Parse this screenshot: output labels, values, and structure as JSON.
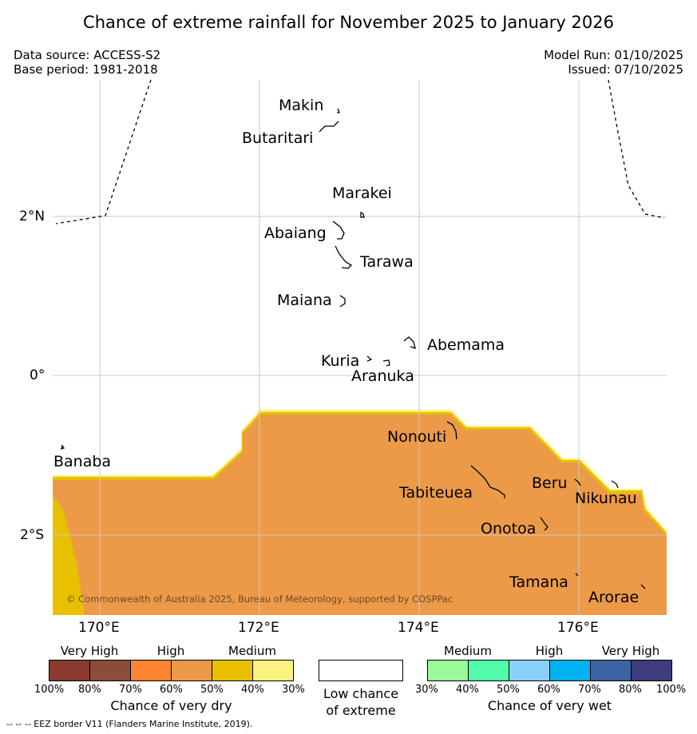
{
  "title": "Chance of extreme rainfall for November 2025 to January 2026",
  "meta": {
    "data_source": "Data source: ACCESS-S2",
    "base_period": "Base period: 1981-2018",
    "model_run": "Model Run: 01/10/2025",
    "issued": "Issued: 07/10/2025"
  },
  "axes": {
    "lat_labels": [
      "2°N",
      "0°",
      "2°S"
    ],
    "lon_labels": [
      "170°E",
      "172°E",
      "174°E",
      "176°E"
    ]
  },
  "places": {
    "makin": "Makin",
    "butaritari": "Butaritari",
    "marakei": "Marakei",
    "abaiang": "Abaiang",
    "tarawa": "Tarawa",
    "maiana": "Maiana",
    "abemama": "Abemama",
    "kuria": "Kuria",
    "aranuka": "Aranuka",
    "nonouti": "Nonouti",
    "banaba": "Banaba",
    "beru": "Beru",
    "tabiteuea": "Tabiteuea",
    "nikunau": "Nikunau",
    "onotoa": "Onotoa",
    "tamana": "Tamana",
    "arorae": "Arorae"
  },
  "copyright": "© Commonwealth of Australia 2025, Bureau of Meteorology, supported by COSPPac",
  "legend": {
    "dry": {
      "headers": [
        "Very High",
        "High",
        "Medium"
      ],
      "ticks": [
        "100%",
        "80%",
        "70%",
        "60%",
        "50%",
        "40%",
        "30%"
      ],
      "colors": [
        "#8b3a2f",
        "#8b4c3a",
        "#fd8531",
        "#ec9a48",
        "#e9c000",
        "#fbf37f"
      ],
      "title": "Chance of very dry"
    },
    "neutral": {
      "line1": "Low chance",
      "line2": "of extreme",
      "color": "#ffffff"
    },
    "wet": {
      "headers": [
        "Medium",
        "High",
        "Very High"
      ],
      "ticks": [
        "30%",
        "40%",
        "50%",
        "60%",
        "70%",
        "80%",
        "100%"
      ],
      "colors": [
        "#9afa9a",
        "#52fba8",
        "#8bd0fb",
        "#00b2ef",
        "#3c62a4",
        "#3d3c7c"
      ],
      "title": "Chance of very wet"
    }
  },
  "map_colors": {
    "dry_60_70": "#ec9a48",
    "dry_50_60_edge": "#e9c000",
    "dry_40_50_edge": "#fbf37f"
  },
  "footer": "--  --  -- EEZ border V11 (Flanders Marine Institute, 2019)."
}
